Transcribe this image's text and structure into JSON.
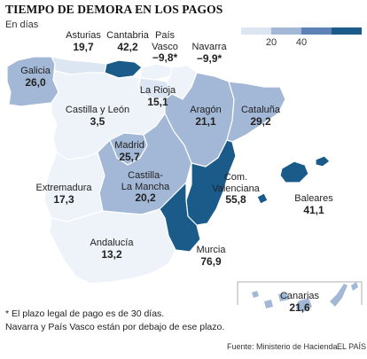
{
  "header": {
    "title": "TIEMPO DE DEMORA EN LOS PAGOS",
    "subtitle": "En días"
  },
  "legend": {
    "colors": [
      "#dce6f2",
      "#a3b8d6",
      "#5f82b6",
      "#1a5b8a"
    ],
    "ticks": [
      "20",
      "40"
    ]
  },
  "regions": [
    {
      "id": "asturias",
      "name": "Asturias",
      "value": "19,7"
    },
    {
      "id": "cantabria",
      "name": "Cantabria",
      "value": "42,2"
    },
    {
      "id": "pais-vasco",
      "name": "País Vasco",
      "value": "−9,8*"
    },
    {
      "id": "navarra",
      "name": "Navarra",
      "value": "−9,9*"
    },
    {
      "id": "galicia",
      "name": "Galicia",
      "value": "26,0"
    },
    {
      "id": "la-rioja",
      "name": "La Rioja",
      "value": "15,1"
    },
    {
      "id": "castilla-leon",
      "name": "Castilla y León",
      "value": "3,5"
    },
    {
      "id": "aragon",
      "name": "Aragón",
      "value": "21,1"
    },
    {
      "id": "cataluna",
      "name": "Cataluña",
      "value": "29,2"
    },
    {
      "id": "madrid",
      "name": "Madrid",
      "value": "25,7"
    },
    {
      "id": "castilla-la-mancha",
      "name": "Castilla-La Mancha",
      "value": "20,2"
    },
    {
      "id": "extremadura",
      "name": "Extremadura",
      "value": "17,3"
    },
    {
      "id": "valenciana",
      "name": "Com. Valenciana",
      "value": "55,8"
    },
    {
      "id": "baleares",
      "name": "Baleares",
      "value": "41,1"
    },
    {
      "id": "andalucia",
      "name": "Andalucía",
      "value": "13,2"
    },
    {
      "id": "murcia",
      "name": "Murcia",
      "value": "76,9"
    },
    {
      "id": "canarias",
      "name": "Canarias",
      "value": "21,6"
    }
  ],
  "labels_split": {
    "pais_vasco": [
      "País",
      "Vasco"
    ],
    "castilla_la_mancha": [
      "Castilla-",
      "La Mancha"
    ],
    "valenciana": [
      "Com.",
      "Valenciana"
    ]
  },
  "footnote": {
    "line1": "* El plazo legal de pago es de 30 días.",
    "line2": "Navarra y País Vasco están por debajo de ese plazo."
  },
  "source": "Fuente: Ministerio de Hacienda.",
  "brand": "EL PAÍS"
}
